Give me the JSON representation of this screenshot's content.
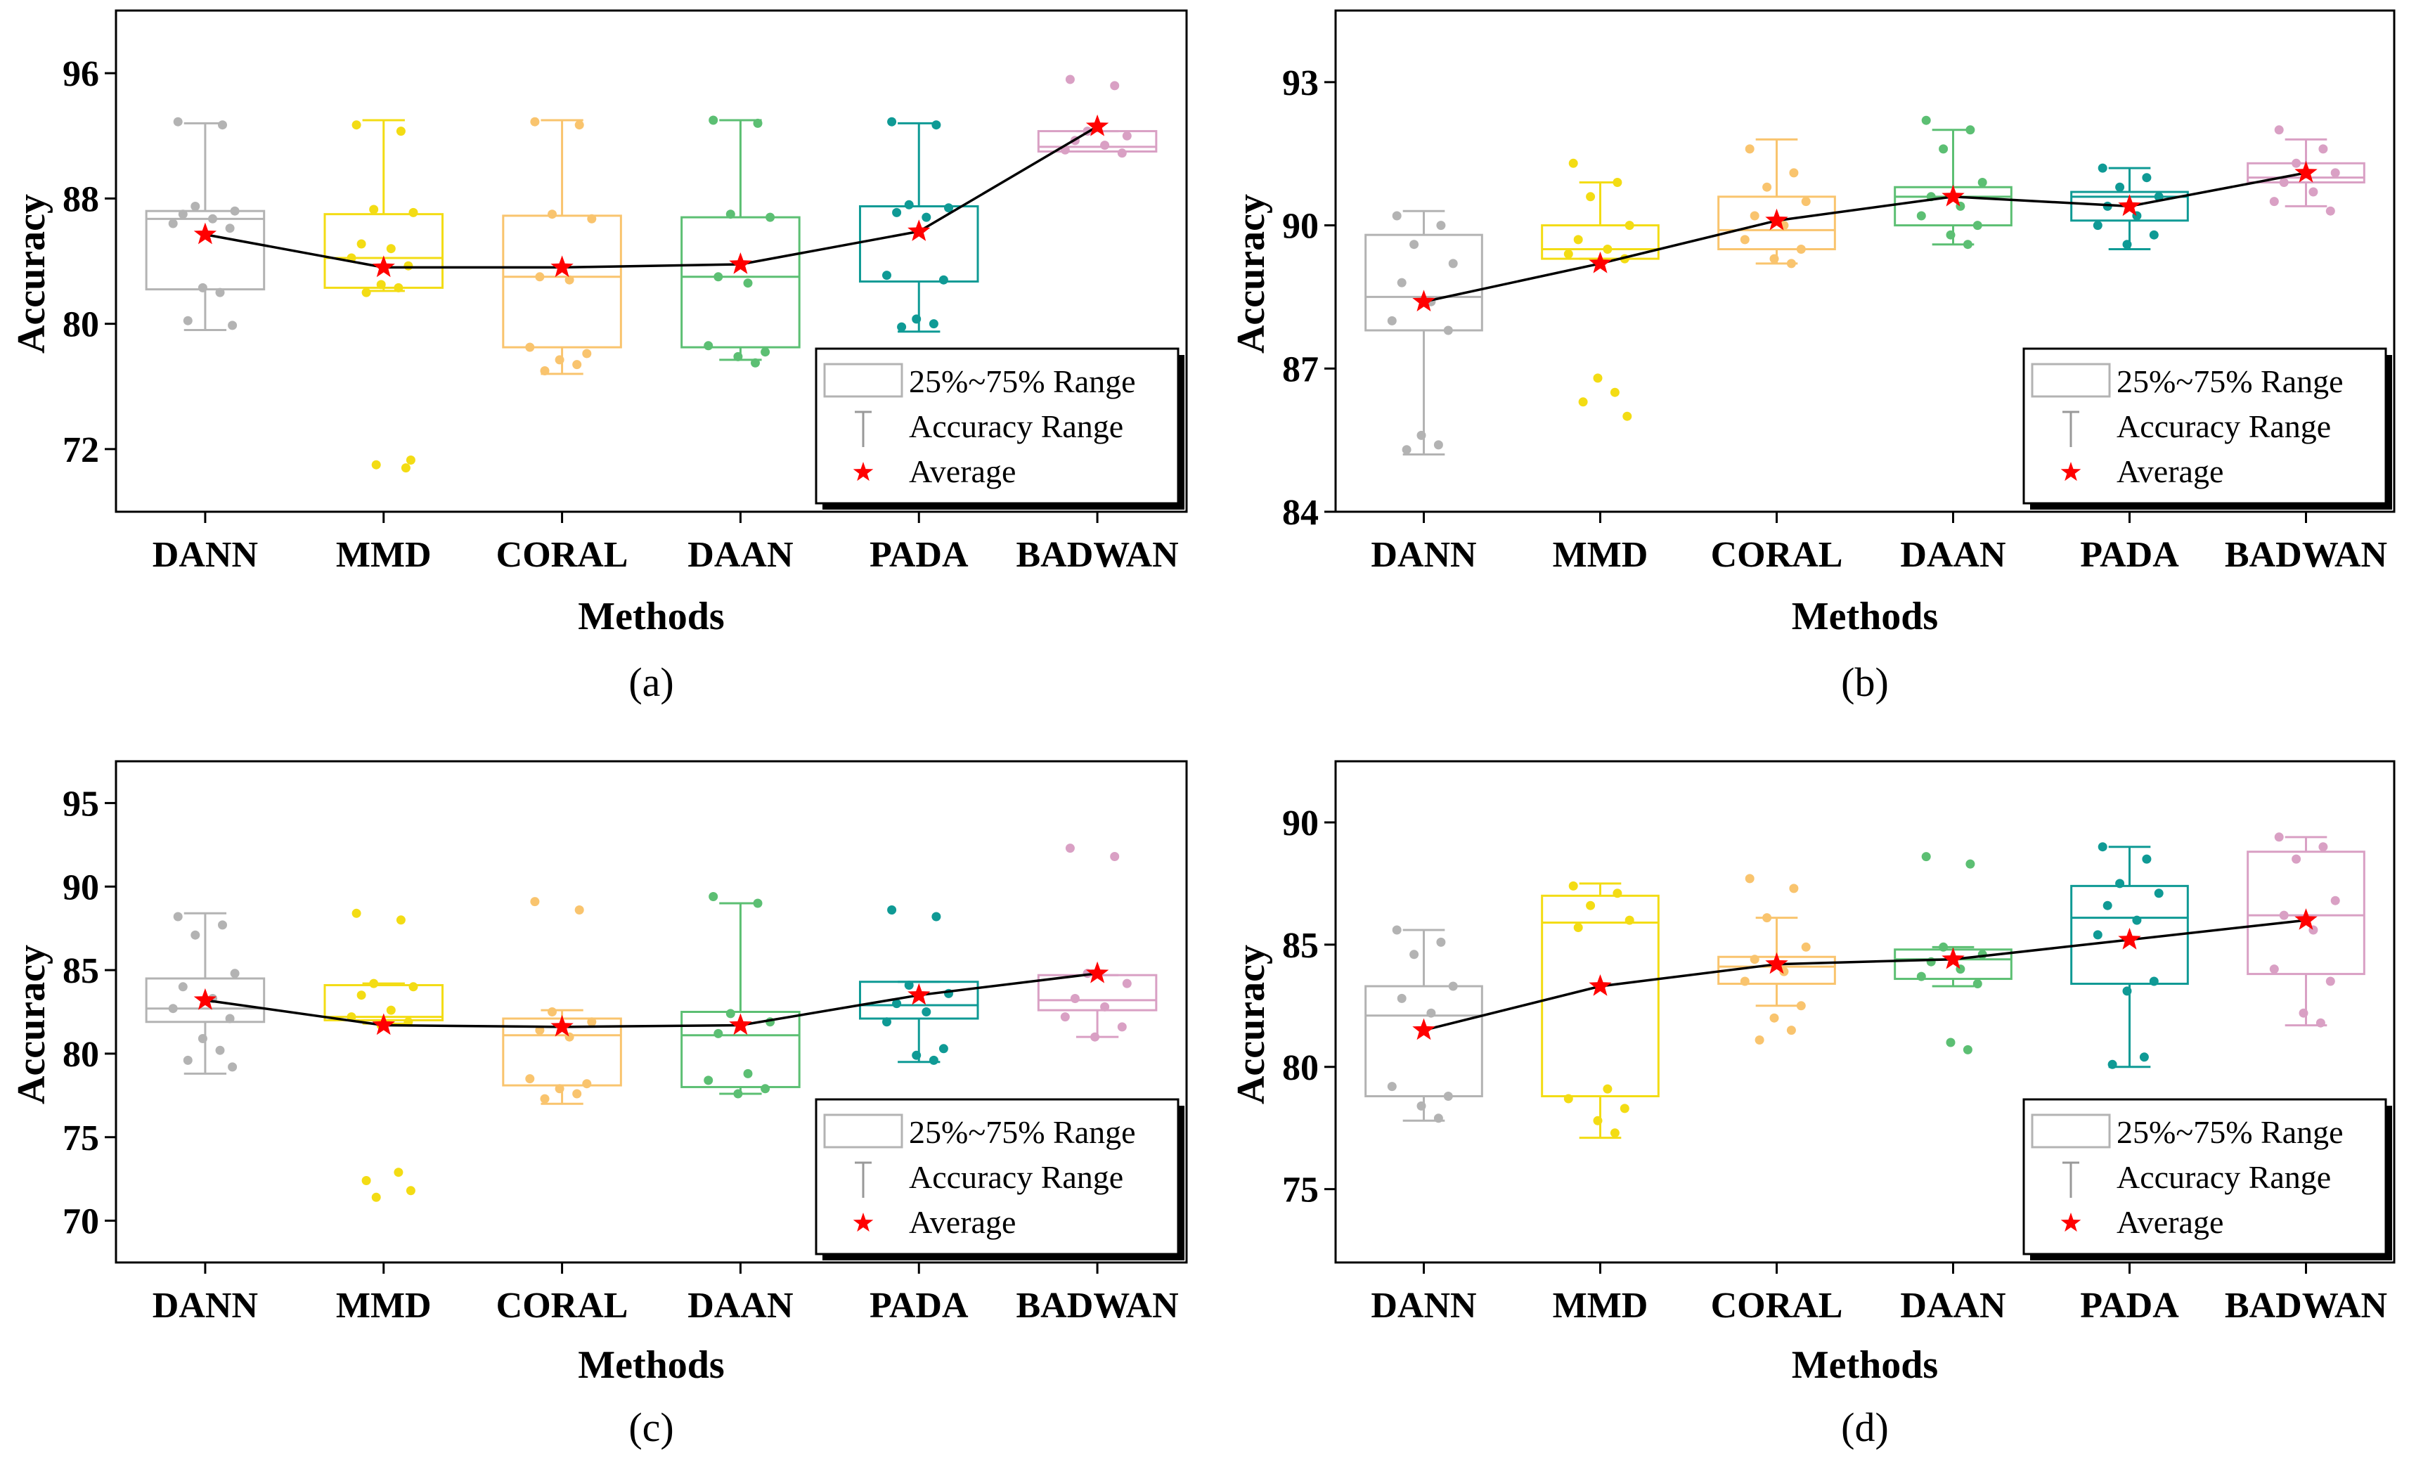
{
  "chart_data": [
    {
      "type": "box",
      "panel_label": "(a)",
      "xlabel": "Methods",
      "ylabel": "Accuracy",
      "ylim": [
        68,
        100
      ],
      "yticks": [
        72,
        80,
        88,
        96
      ],
      "categories": [
        "DANN",
        "MMD",
        "CORAL",
        "DAAN",
        "PADA",
        "BADWAN"
      ],
      "colors": [
        "#b3b3b3",
        "#f3dc14",
        "#f9c46e",
        "#5cbf73",
        "#0f9a95",
        "#d9a0c4"
      ],
      "boxes": [
        {
          "min": 79.6,
          "q1": 82.2,
          "median": 86.7,
          "q3": 87.2,
          "max": 92.8
        },
        {
          "min": 82.1,
          "q1": 82.3,
          "median": 84.2,
          "q3": 87.0,
          "max": 93.0
        },
        {
          "min": 76.8,
          "q1": 78.5,
          "median": 83.0,
          "q3": 86.9,
          "max": 93.0
        },
        {
          "min": 77.7,
          "q1": 78.5,
          "median": 83.0,
          "q3": 86.8,
          "max": 93.0
        },
        {
          "min": 79.5,
          "q1": 82.7,
          "median": 87.5,
          "q3": 87.5,
          "max": 92.8
        },
        {
          "min": 91.0,
          "q1": 91.0,
          "median": 91.3,
          "q3": 92.3,
          "max": 92.3
        }
      ],
      "averages": [
        85.7,
        83.6,
        83.6,
        83.8,
        85.9,
        92.6
      ],
      "points": [
        [
          92.9,
          92.7,
          87.5,
          87.2,
          87.0,
          86.7,
          86.4,
          86.1,
          82.3,
          82.0,
          80.2,
          79.9
        ],
        [
          92.7,
          92.3,
          87.3,
          87.1,
          85.1,
          84.8,
          84.2,
          83.7,
          82.5,
          82.3,
          82.0,
          71.3,
          71.0,
          70.8
        ],
        [
          92.9,
          92.7,
          87.0,
          86.7,
          83.0,
          82.8,
          78.5,
          78.1,
          77.7,
          77.4,
          77.0
        ],
        [
          93.0,
          92.8,
          87.0,
          86.8,
          83.0,
          82.6,
          78.6,
          78.2,
          77.9,
          77.5
        ],
        [
          92.9,
          92.7,
          87.6,
          87.4,
          87.1,
          86.8,
          83.1,
          82.8,
          80.3,
          80.0,
          79.8
        ],
        [
          95.6,
          95.2,
          92.3,
          92.0,
          91.7,
          91.4,
          91.1,
          90.9
        ]
      ],
      "legend": [
        "25%~75% Range",
        "Accuracy Range",
        "Average"
      ]
    },
    {
      "type": "box",
      "panel_label": "(b)",
      "xlabel": "Methods",
      "ylabel": "Accuracy",
      "ylim": [
        84,
        94.5
      ],
      "yticks": [
        84,
        87,
        90,
        93
      ],
      "categories": [
        "DANN",
        "MMD",
        "CORAL",
        "DAAN",
        "PADA",
        "BADWAN"
      ],
      "colors": [
        "#b3b3b3",
        "#f3dc14",
        "#f9c46e",
        "#5cbf73",
        "#0f9a95",
        "#d9a0c4"
      ],
      "boxes": [
        {
          "min": 85.2,
          "q1": 87.8,
          "median": 88.5,
          "q3": 89.8,
          "max": 90.3
        },
        {
          "min": 89.3,
          "q1": 89.3,
          "median": 89.5,
          "q3": 90.0,
          "max": 90.9
        },
        {
          "min": 89.2,
          "q1": 89.5,
          "median": 89.9,
          "q3": 90.6,
          "max": 91.8
        },
        {
          "min": 89.6,
          "q1": 90.0,
          "median": 90.6,
          "q3": 90.8,
          "max": 92.0
        },
        {
          "min": 89.5,
          "q1": 90.1,
          "median": 90.6,
          "q3": 90.7,
          "max": 91.2
        },
        {
          "min": 90.4,
          "q1": 90.9,
          "median": 91.0,
          "q3": 91.3,
          "max": 91.8
        }
      ],
      "averages": [
        88.4,
        89.2,
        90.1,
        90.6,
        90.4,
        91.1
      ],
      "points": [
        [
          90.2,
          90.0,
          89.6,
          89.2,
          88.8,
          88.4,
          88.0,
          87.8,
          85.6,
          85.4,
          85.3
        ],
        [
          91.3,
          90.9,
          90.6,
          90.0,
          89.7,
          89.5,
          89.4,
          89.3,
          86.8,
          86.5,
          86.3,
          86.0
        ],
        [
          91.6,
          91.1,
          90.8,
          90.5,
          90.2,
          90.0,
          89.7,
          89.5,
          89.3,
          89.2
        ],
        [
          92.2,
          92.0,
          91.6,
          90.9,
          90.6,
          90.4,
          90.2,
          90.0,
          89.8,
          89.6
        ],
        [
          91.2,
          91.0,
          90.8,
          90.6,
          90.4,
          90.2,
          90.0,
          89.8,
          89.6
        ],
        [
          92.0,
          91.6,
          91.3,
          91.1,
          90.9,
          90.7,
          90.5,
          90.3
        ]
      ],
      "legend": [
        "25%~75% Range",
        "Accuracy Range",
        "Average"
      ]
    },
    {
      "type": "box",
      "panel_label": "(c)",
      "xlabel": "Methods",
      "ylabel": "Accuracy",
      "ylim": [
        67.5,
        97.5
      ],
      "yticks": [
        70,
        75,
        80,
        85,
        90,
        95
      ],
      "categories": [
        "DANN",
        "MMD",
        "CORAL",
        "DAAN",
        "PADA",
        "BADWAN"
      ],
      "colors": [
        "#b3b3b3",
        "#f3dc14",
        "#f9c46e",
        "#5cbf73",
        "#0f9a95",
        "#d9a0c4"
      ],
      "boxes": [
        {
          "min": 78.8,
          "q1": 81.9,
          "median": 82.7,
          "q3": 84.5,
          "max": 88.4
        },
        {
          "min": 81.8,
          "q1": 82.0,
          "median": 82.2,
          "q3": 84.1,
          "max": 84.2
        },
        {
          "min": 77.0,
          "q1": 78.1,
          "median": 81.1,
          "q3": 82.1,
          "max": 82.6
        },
        {
          "min": 77.6,
          "q1": 78.0,
          "median": 81.1,
          "q3": 82.5,
          "max": 89.0
        },
        {
          "min": 79.5,
          "q1": 82.1,
          "median": 82.9,
          "q3": 84.3,
          "max": 84.3
        },
        {
          "min": 81.0,
          "q1": 82.6,
          "median": 83.2,
          "q3": 84.7,
          "max": 84.7
        }
      ],
      "averages": [
        83.2,
        81.7,
        81.6,
        81.7,
        83.5,
        84.8
      ],
      "points": [
        [
          88.2,
          87.7,
          87.1,
          84.8,
          84.0,
          83.3,
          82.7,
          82.1,
          80.9,
          80.2,
          79.6,
          79.2
        ],
        [
          88.4,
          88.0,
          84.2,
          84.0,
          83.5,
          82.6,
          82.2,
          81.9,
          81.7,
          72.9,
          72.4,
          71.8,
          71.4
        ],
        [
          89.1,
          88.6,
          82.5,
          81.9,
          81.4,
          81.0,
          78.5,
          78.2,
          77.9,
          77.6,
          77.3
        ],
        [
          89.4,
          89.0,
          82.4,
          81.9,
          81.2,
          78.8,
          78.4,
          77.9,
          77.6
        ],
        [
          88.6,
          88.2,
          84.1,
          83.6,
          83.0,
          82.5,
          81.9,
          80.3,
          79.9,
          79.6
        ],
        [
          92.3,
          91.8,
          84.8,
          84.2,
          83.3,
          82.8,
          82.2,
          81.6,
          81.0
        ]
      ],
      "legend": [
        "25%~75% Range",
        "Accuracy Range",
        "Average"
      ]
    },
    {
      "type": "box",
      "panel_label": "(d)",
      "xlabel": "Methods",
      "ylabel": "Accuracy",
      "ylim": [
        72,
        92.5
      ],
      "yticks": [
        75,
        80,
        85,
        90
      ],
      "categories": [
        "DANN",
        "MMD",
        "CORAL",
        "DAAN",
        "PADA",
        "BADWAN"
      ],
      "colors": [
        "#b3b3b3",
        "#f3dc14",
        "#f9c46e",
        "#5cbf73",
        "#0f9a95",
        "#d9a0c4"
      ],
      "boxes": [
        {
          "min": 77.8,
          "q1": 78.8,
          "median": 82.1,
          "q3": 83.3,
          "max": 85.6
        },
        {
          "min": 77.1,
          "q1": 78.8,
          "median": 85.9,
          "q3": 87.0,
          "max": 87.5
        },
        {
          "min": 82.5,
          "q1": 83.4,
          "median": 84.1,
          "q3": 84.5,
          "max": 86.1
        },
        {
          "min": 83.3,
          "q1": 83.6,
          "median": 84.4,
          "q3": 84.8,
          "max": 84.9
        },
        {
          "min": 80.0,
          "q1": 83.4,
          "median": 86.1,
          "q3": 87.4,
          "max": 89.0
        },
        {
          "min": 81.7,
          "q1": 83.8,
          "median": 86.2,
          "q3": 88.8,
          "max": 89.4
        }
      ],
      "averages": [
        81.5,
        83.3,
        84.2,
        84.4,
        85.2,
        86.0
      ],
      "points": [
        [
          85.6,
          85.1,
          84.6,
          83.3,
          82.8,
          82.2,
          79.2,
          78.8,
          78.4,
          77.9
        ],
        [
          87.4,
          87.1,
          86.6,
          86.0,
          85.7,
          79.1,
          78.7,
          78.3,
          77.8,
          77.3
        ],
        [
          87.7,
          87.3,
          86.1,
          84.9,
          84.4,
          83.9,
          83.5,
          82.5,
          82.0,
          81.5,
          81.1
        ],
        [
          88.6,
          88.3,
          84.9,
          84.6,
          84.3,
          84.0,
          83.7,
          83.4,
          81.0,
          80.7
        ],
        [
          89.0,
          88.5,
          87.5,
          87.1,
          86.6,
          86.0,
          85.4,
          83.5,
          83.1,
          80.4,
          80.1
        ],
        [
          89.4,
          89.0,
          88.5,
          86.8,
          86.2,
          85.6,
          84.0,
          83.5,
          82.2,
          81.8
        ]
      ],
      "legend": [
        "25%~75% Range",
        "Accuracy Range",
        "Average"
      ]
    }
  ]
}
